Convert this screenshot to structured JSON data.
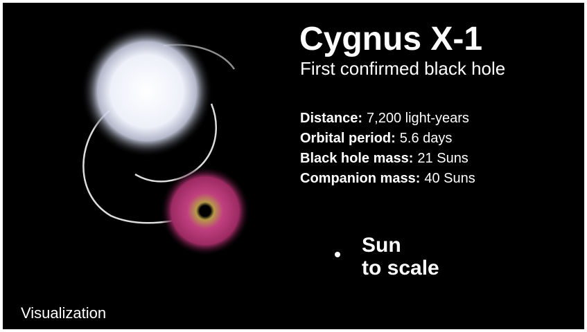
{
  "header": {
    "title": "Cygnus X-1",
    "subtitle": "First confirmed black hole"
  },
  "facts": [
    {
      "label": "Distance:",
      "value": "7,200 light-years"
    },
    {
      "label": "Orbital period:",
      "value": "5.6 days"
    },
    {
      "label": "Black hole mass:",
      "value": "21 Suns"
    },
    {
      "label": "Companion mass:",
      "value": "40 Suns"
    }
  ],
  "scale_note": {
    "line1": "Sun",
    "line2": "to scale"
  },
  "footer": "Visualization"
}
